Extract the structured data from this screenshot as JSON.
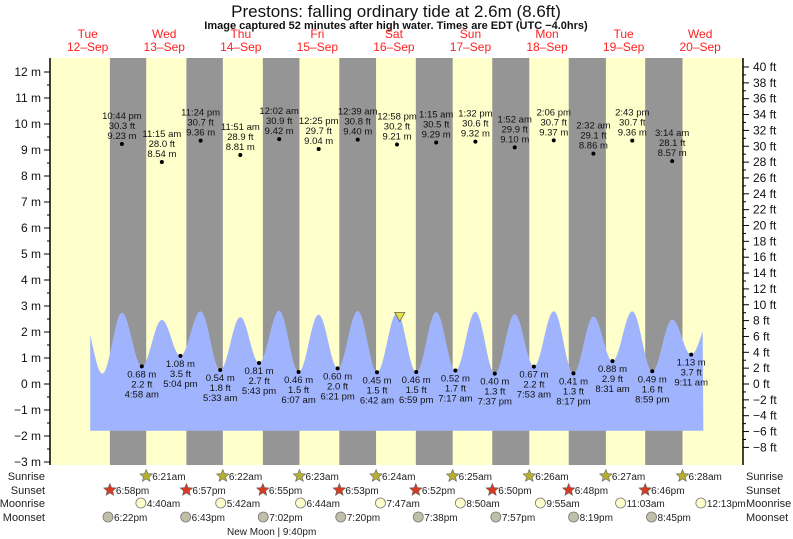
{
  "title": "Prestons: falling  ordinary tide at 2.6m (8.6ft)",
  "subtitle": "Image captured 52 minutes after high water. Times are EDT (UTC −4.0hrs)",
  "chart_data": {
    "type": "area",
    "title": "Prestons: falling  ordinary tide at 2.6m (8.6ft)",
    "left_axis": {
      "unit": "m",
      "ticks": [
        -3,
        -2,
        -1,
        0,
        1,
        2,
        3,
        4,
        5,
        6,
        7,
        8,
        9,
        10,
        11,
        12
      ]
    },
    "right_axis": {
      "unit": "ft",
      "ticks": [
        -8,
        -6,
        -4,
        -2,
        0,
        2,
        4,
        6,
        8,
        10,
        12,
        14,
        16,
        18,
        20,
        22,
        24,
        26,
        28,
        30,
        32,
        34,
        36,
        38,
        40
      ]
    },
    "days": [
      {
        "dow": "Tue",
        "date": "12-Sep"
      },
      {
        "dow": "Wed",
        "date": "13-Sep"
      },
      {
        "dow": "Thu",
        "date": "14-Sep"
      },
      {
        "dow": "Fri",
        "date": "15-Sep"
      },
      {
        "dow": "Sat",
        "date": "16-Sep"
      },
      {
        "dow": "Sun",
        "date": "17-Sep"
      },
      {
        "dow": "Mon",
        "date": "18-Sep"
      },
      {
        "dow": "Tue",
        "date": "19-Sep"
      },
      {
        "dow": "Wed",
        "date": "20-Sep"
      }
    ],
    "current": {
      "date": "16-Sep",
      "time": "1:50 pm",
      "m": 2.6,
      "ft": 8.6,
      "state": "falling"
    },
    "tides": [
      {
        "type": "high",
        "date": "12-Sep",
        "time": "10:44 pm",
        "ft": "30.3 ft",
        "m": "9.23 m"
      },
      {
        "type": "low",
        "date": "13-Sep",
        "time": "4:58 am",
        "ft": "2.2 ft",
        "m": "0.68 m"
      },
      {
        "type": "high",
        "date": "13-Sep",
        "time": "11:15 am",
        "ft": "28.0 ft",
        "m": "8.54 m"
      },
      {
        "type": "low",
        "date": "13-Sep",
        "time": "5:04 pm",
        "ft": "3.5 ft",
        "m": "1.08 m"
      },
      {
        "type": "high",
        "date": "13-Sep",
        "time": "11:24 pm",
        "ft": "30.7 ft",
        "m": "9.36 m"
      },
      {
        "type": "low",
        "date": "14-Sep",
        "time": "5:33 am",
        "ft": "1.8 ft",
        "m": "0.54 m"
      },
      {
        "type": "high",
        "date": "14-Sep",
        "time": "11:51 am",
        "ft": "28.9 ft",
        "m": "8.81 m"
      },
      {
        "type": "low",
        "date": "14-Sep",
        "time": "5:43 pm",
        "ft": "2.7 ft",
        "m": "0.81 m"
      },
      {
        "type": "high",
        "date": "15-Sep",
        "time": "12:02 am",
        "ft": "30.9 ft",
        "m": "9.42 m"
      },
      {
        "type": "low",
        "date": "15-Sep",
        "time": "6:07 am",
        "ft": "1.5 ft",
        "m": "0.46 m"
      },
      {
        "type": "high",
        "date": "15-Sep",
        "time": "12:25 pm",
        "ft": "29.7 ft",
        "m": "9.04 m"
      },
      {
        "type": "low",
        "date": "15-Sep",
        "time": "6:21 pm",
        "ft": "2.0 ft",
        "m": "0.60 m"
      },
      {
        "type": "high",
        "date": "16-Sep",
        "time": "12:39 am",
        "ft": "30.8 ft",
        "m": "9.40 m"
      },
      {
        "type": "low",
        "date": "16-Sep",
        "time": "6:42 am",
        "ft": "1.5 ft",
        "m": "0.45 m"
      },
      {
        "type": "high",
        "date": "16-Sep",
        "time": "12:58 pm",
        "ft": "30.2 ft",
        "m": "9.21 m"
      },
      {
        "type": "low",
        "date": "16-Sep",
        "time": "6:59 pm",
        "ft": "1.5 ft",
        "m": "0.46 m"
      },
      {
        "type": "high",
        "date": "17-Sep",
        "time": "1:15 am",
        "ft": "30.5 ft",
        "m": "9.29 m"
      },
      {
        "type": "low",
        "date": "17-Sep",
        "time": "7:17 am",
        "ft": "1.7 ft",
        "m": "0.52 m"
      },
      {
        "type": "high",
        "date": "17-Sep",
        "time": "1:32 pm",
        "ft": "30.6 ft",
        "m": "9.32 m"
      },
      {
        "type": "low",
        "date": "17-Sep",
        "time": "7:37 pm",
        "ft": "1.3 ft",
        "m": "0.40 m"
      },
      {
        "type": "high",
        "date": "18-Sep",
        "time": "1:52 am",
        "ft": "29.9 ft",
        "m": "9.10 m"
      },
      {
        "type": "low",
        "date": "18-Sep",
        "time": "7:53 am",
        "ft": "2.2 ft",
        "m": "0.67 m"
      },
      {
        "type": "high",
        "date": "18-Sep",
        "time": "2:06 pm",
        "ft": "30.7 ft",
        "m": "9.37 m"
      },
      {
        "type": "low",
        "date": "18-Sep",
        "time": "8:17 pm",
        "ft": "1.3 ft",
        "m": "0.41 m"
      },
      {
        "type": "high",
        "date": "19-Sep",
        "time": "2:32 am",
        "ft": "29.1 ft",
        "m": "8.86 m"
      },
      {
        "type": "low",
        "date": "19-Sep",
        "time": "8:31 am",
        "ft": "2.9 ft",
        "m": "0.88 m"
      },
      {
        "type": "high",
        "date": "19-Sep",
        "time": "2:43 pm",
        "ft": "30.7 ft",
        "m": "9.36 m"
      },
      {
        "type": "low",
        "date": "19-Sep",
        "time": "8:59 pm",
        "ft": "1.6 ft",
        "m": "0.49 m"
      },
      {
        "type": "high",
        "date": "20-Sep",
        "time": "3:14 am",
        "ft": "28.1 ft",
        "m": "8.57 m"
      },
      {
        "type": "low",
        "date": "20-Sep",
        "time": "9:11 am",
        "ft": "3.7 ft",
        "m": "1.13 m"
      }
    ],
    "rows": {
      "sunrise": {
        "label": "Sunrise",
        "events": [
          {
            "date": "13-Sep",
            "time": "6:21am"
          },
          {
            "date": "14-Sep",
            "time": "6:22am"
          },
          {
            "date": "15-Sep",
            "time": "6:23am"
          },
          {
            "date": "16-Sep",
            "time": "6:24am"
          },
          {
            "date": "17-Sep",
            "time": "6:25am"
          },
          {
            "date": "18-Sep",
            "time": "6:26am"
          },
          {
            "date": "19-Sep",
            "time": "6:27am"
          },
          {
            "date": "20-Sep",
            "time": "6:28am"
          }
        ]
      },
      "sunset": {
        "label": "Sunset",
        "events": [
          {
            "date": "12-Sep",
            "time": "6:58pm"
          },
          {
            "date": "13-Sep",
            "time": "6:57pm"
          },
          {
            "date": "14-Sep",
            "time": "6:55pm"
          },
          {
            "date": "15-Sep",
            "time": "6:53pm"
          },
          {
            "date": "16-Sep",
            "time": "6:52pm"
          },
          {
            "date": "17-Sep",
            "time": "6:50pm"
          },
          {
            "date": "18-Sep",
            "time": "6:48pm"
          },
          {
            "date": "19-Sep",
            "time": "6:46pm"
          }
        ]
      },
      "moonrise": {
        "label": "Moonrise",
        "events": [
          {
            "date": "13-Sep",
            "time": "4:40am"
          },
          {
            "date": "14-Sep",
            "time": "5:42am"
          },
          {
            "date": "15-Sep",
            "time": "6:44am"
          },
          {
            "date": "16-Sep",
            "time": "7:47am"
          },
          {
            "date": "17-Sep",
            "time": "8:50am"
          },
          {
            "date": "18-Sep",
            "time": "9:55am"
          },
          {
            "date": "19-Sep",
            "time": "11:03am"
          },
          {
            "date": "20-Sep",
            "time": "12:13pm"
          }
        ]
      },
      "moonset": {
        "label": "Moonset",
        "events": [
          {
            "date": "12-Sep",
            "time": "6:22pm"
          },
          {
            "date": "13-Sep",
            "time": "6:43pm"
          },
          {
            "date": "14-Sep",
            "time": "7:02pm"
          },
          {
            "date": "15-Sep",
            "time": "7:20pm"
          },
          {
            "date": "16-Sep",
            "time": "7:38pm"
          },
          {
            "date": "17-Sep",
            "time": "7:57pm"
          },
          {
            "date": "18-Sep",
            "time": "8:19pm"
          },
          {
            "date": "19-Sep",
            "time": "8:45pm"
          }
        ]
      }
    },
    "moon_phase": {
      "label": "New Moon",
      "date": "14-Sep",
      "time": "9:40pm",
      "text": "New Moon | 9:40pm"
    },
    "colors": {
      "day": "#ffffcc",
      "night": "#959595",
      "water": "#a0b4fe",
      "day_label": "#ff2020",
      "sunrise": "#b5b030",
      "sunset": "#d63a20",
      "moonrise": "#ffffcc",
      "moonset": "#c0c0a8",
      "marker": "#e8e040"
    }
  }
}
